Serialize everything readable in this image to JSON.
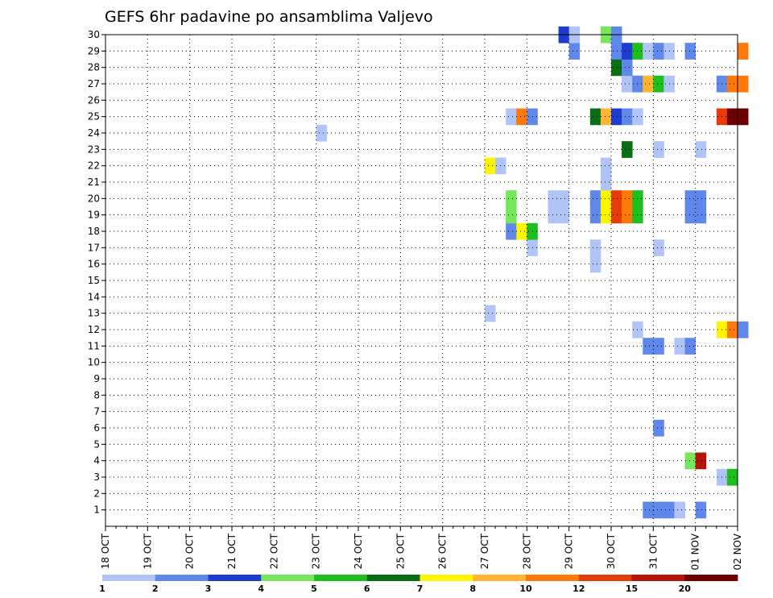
{
  "chart_data": {
    "type": "heatmap",
    "title": "GEFS 6hr padavine po ansamblima Valjevo",
    "x_tick_labels": [
      "18 OCT",
      "19 OCT",
      "20 OCT",
      "21 OCT",
      "22 OCT",
      "23 OCT",
      "24 OCT",
      "25 OCT",
      "26 OCT",
      "27 OCT",
      "28 OCT",
      "29 OCT",
      "30 OCT",
      "31 OCT",
      "01 NOV",
      "02 NOV"
    ],
    "y_tick_labels": [
      "1",
      "2",
      "3",
      "4",
      "5",
      "6",
      "7",
      "8",
      "9",
      "10",
      "11",
      "12",
      "13",
      "14",
      "15",
      "16",
      "17",
      "18",
      "19",
      "20",
      "21",
      "22",
      "23",
      "24",
      "25",
      "26",
      "27",
      "28",
      "29",
      "30"
    ],
    "x_range": [
      "18 OCT 00Z",
      "02 NOV 00Z"
    ],
    "x_step_hours": 6,
    "y_range": [
      0,
      30
    ],
    "grid": true,
    "colorbar": {
      "labels": [
        "1",
        "2",
        "3",
        "4",
        "5",
        "6",
        "7",
        "8",
        "10",
        "12",
        "15",
        "20"
      ],
      "colors": [
        "#b0c4f8",
        "#6088ea",
        "#1e3cd2",
        "#78e65a",
        "#1ebe1e",
        "#0a6e14",
        "#fff500",
        "#ffb432",
        "#ff780a",
        "#e63c0a",
        "#b4140a",
        "#6e0000"
      ]
    },
    "cells": [
      {
        "ens": 1,
        "day": "30 OCT",
        "h": 18,
        "v": 2
      },
      {
        "ens": 1,
        "day": "31 OCT",
        "h": 0,
        "v": 2
      },
      {
        "ens": 1,
        "day": "31 OCT",
        "h": 6,
        "v": 2
      },
      {
        "ens": 1,
        "day": "31 OCT",
        "h": 12,
        "v": 1
      },
      {
        "ens": 1,
        "day": "01 NOV",
        "h": 0,
        "v": 2
      },
      {
        "ens": 3,
        "day": "01 NOV",
        "h": 12,
        "v": 1
      },
      {
        "ens": 3,
        "day": "01 NOV",
        "h": 18,
        "v": 5
      },
      {
        "ens": 4,
        "day": "31 OCT",
        "h": 18,
        "v": 4
      },
      {
        "ens": 4,
        "day": "01 NOV",
        "h": 0,
        "v": 11
      },
      {
        "ens": 6,
        "day": "31 OCT",
        "h": 0,
        "v": 2
      },
      {
        "ens": 11,
        "day": "30 OCT",
        "h": 18,
        "v": 2
      },
      {
        "ens": 11,
        "day": "31 OCT",
        "h": 0,
        "v": 2
      },
      {
        "ens": 11,
        "day": "31 OCT",
        "h": 12,
        "v": 1
      },
      {
        "ens": 11,
        "day": "31 OCT",
        "h": 18,
        "v": 2
      },
      {
        "ens": 12,
        "day": "30 OCT",
        "h": 12,
        "v": 1
      },
      {
        "ens": 12,
        "day": "01 NOV",
        "h": 12,
        "v": 7
      },
      {
        "ens": 12,
        "day": "01 NOV",
        "h": 18,
        "v": 9
      },
      {
        "ens": 12,
        "day": "02 NOV",
        "h": 0,
        "v": 2
      },
      {
        "ens": 13,
        "day": "27 OCT",
        "h": 0,
        "v": 1
      },
      {
        "ens": 16,
        "day": "29 OCT",
        "h": 12,
        "v": 1
      },
      {
        "ens": 17,
        "day": "29 OCT",
        "h": 12,
        "v": 1
      },
      {
        "ens": 17,
        "day": "28 OCT",
        "h": 0,
        "v": 1
      },
      {
        "ens": 17,
        "day": "31 OCT",
        "h": 0,
        "v": 1
      },
      {
        "ens": 18,
        "day": "27 OCT",
        "h": 12,
        "v": 2
      },
      {
        "ens": 18,
        "day": "27 OCT",
        "h": 18,
        "v": 7
      },
      {
        "ens": 18,
        "day": "28 OCT",
        "h": 0,
        "v": 5
      },
      {
        "ens": 19,
        "day": "27 OCT",
        "h": 12,
        "v": 4
      },
      {
        "ens": 19,
        "day": "28 OCT",
        "h": 12,
        "v": 1
      },
      {
        "ens": 19,
        "day": "28 OCT",
        "h": 18,
        "v": 1
      },
      {
        "ens": 19,
        "day": "29 OCT",
        "h": 12,
        "v": 2
      },
      {
        "ens": 19,
        "day": "29 OCT",
        "h": 18,
        "v": 7
      },
      {
        "ens": 19,
        "day": "30 OCT",
        "h": 0,
        "v": 10
      },
      {
        "ens": 19,
        "day": "30 OCT",
        "h": 6,
        "v": 9
      },
      {
        "ens": 19,
        "day": "30 OCT",
        "h": 12,
        "v": 5
      },
      {
        "ens": 19,
        "day": "31 OCT",
        "h": 18,
        "v": 2
      },
      {
        "ens": 19,
        "day": "01 NOV",
        "h": 0,
        "v": 2
      },
      {
        "ens": 20,
        "day": "27 OCT",
        "h": 12,
        "v": 4
      },
      {
        "ens": 20,
        "day": "28 OCT",
        "h": 12,
        "v": 1
      },
      {
        "ens": 20,
        "day": "28 OCT",
        "h": 18,
        "v": 1
      },
      {
        "ens": 20,
        "day": "29 OCT",
        "h": 12,
        "v": 2
      },
      {
        "ens": 20,
        "day": "29 OCT",
        "h": 18,
        "v": 7
      },
      {
        "ens": 20,
        "day": "30 OCT",
        "h": 0,
        "v": 10
      },
      {
        "ens": 20,
        "day": "30 OCT",
        "h": 6,
        "v": 9
      },
      {
        "ens": 20,
        "day": "30 OCT",
        "h": 12,
        "v": 5
      },
      {
        "ens": 20,
        "day": "31 OCT",
        "h": 18,
        "v": 2
      },
      {
        "ens": 20,
        "day": "01 NOV",
        "h": 0,
        "v": 2
      },
      {
        "ens": 21,
        "day": "29 OCT",
        "h": 18,
        "v": 1
      },
      {
        "ens": 22,
        "day": "27 OCT",
        "h": 0,
        "v": 7
      },
      {
        "ens": 22,
        "day": "27 OCT",
        "h": 6,
        "v": 1
      },
      {
        "ens": 22,
        "day": "29 OCT",
        "h": 18,
        "v": 1
      },
      {
        "ens": 23,
        "day": "30 OCT",
        "h": 6,
        "v": 6
      },
      {
        "ens": 23,
        "day": "31 OCT",
        "h": 0,
        "v": 1
      },
      {
        "ens": 23,
        "day": "01 NOV",
        "h": 0,
        "v": 1
      },
      {
        "ens": 24,
        "day": "23 OCT",
        "h": 0,
        "v": 1
      },
      {
        "ens": 25,
        "day": "27 OCT",
        "h": 12,
        "v": 1
      },
      {
        "ens": 25,
        "day": "27 OCT",
        "h": 18,
        "v": 9
      },
      {
        "ens": 25,
        "day": "28 OCT",
        "h": 0,
        "v": 2
      },
      {
        "ens": 25,
        "day": "29 OCT",
        "h": 12,
        "v": 6
      },
      {
        "ens": 25,
        "day": "29 OCT",
        "h": 18,
        "v": 8
      },
      {
        "ens": 25,
        "day": "30 OCT",
        "h": 0,
        "v": 3
      },
      {
        "ens": 25,
        "day": "30 OCT",
        "h": 6,
        "v": 2
      },
      {
        "ens": 25,
        "day": "30 OCT",
        "h": 12,
        "v": 1
      },
      {
        "ens": 25,
        "day": "01 NOV",
        "h": 12,
        "v": 10
      },
      {
        "ens": 25,
        "day": "01 NOV",
        "h": 18,
        "v": 12
      },
      {
        "ens": 25,
        "day": "02 NOV",
        "h": 0,
        "v": 12
      },
      {
        "ens": 27,
        "day": "30 OCT",
        "h": 6,
        "v": 1
      },
      {
        "ens": 27,
        "day": "30 OCT",
        "h": 12,
        "v": 2
      },
      {
        "ens": 27,
        "day": "30 OCT",
        "h": 18,
        "v": 8
      },
      {
        "ens": 27,
        "day": "31 OCT",
        "h": 0,
        "v": 5
      },
      {
        "ens": 27,
        "day": "31 OCT",
        "h": 6,
        "v": 1
      },
      {
        "ens": 27,
        "day": "01 NOV",
        "h": 12,
        "v": 2
      },
      {
        "ens": 27,
        "day": "01 NOV",
        "h": 18,
        "v": 9
      },
      {
        "ens": 27,
        "day": "02 NOV",
        "h": 0,
        "v": 9
      },
      {
        "ens": 28,
        "day": "30 OCT",
        "h": 0,
        "v": 6
      },
      {
        "ens": 28,
        "day": "30 OCT",
        "h": 6,
        "v": 2
      },
      {
        "ens": 29,
        "day": "29 OCT",
        "h": 0,
        "v": 2
      },
      {
        "ens": 29,
        "day": "30 OCT",
        "h": 0,
        "v": 2
      },
      {
        "ens": 29,
        "day": "30 OCT",
        "h": 6,
        "v": 3
      },
      {
        "ens": 29,
        "day": "30 OCT",
        "h": 12,
        "v": 5
      },
      {
        "ens": 29,
        "day": "30 OCT",
        "h": 18,
        "v": 1
      },
      {
        "ens": 29,
        "day": "31 OCT",
        "h": 0,
        "v": 2
      },
      {
        "ens": 29,
        "day": "31 OCT",
        "h": 6,
        "v": 1
      },
      {
        "ens": 29,
        "day": "31 OCT",
        "h": 18,
        "v": 2
      },
      {
        "ens": 29,
        "day": "02 NOV",
        "h": 0,
        "v": 9
      },
      {
        "ens": 30,
        "day": "28 OCT",
        "h": 18,
        "v": 3
      },
      {
        "ens": 30,
        "day": "29 OCT",
        "h": 0,
        "v": 1
      },
      {
        "ens": 30,
        "day": "29 OCT",
        "h": 18,
        "v": 4
      },
      {
        "ens": 30,
        "day": "30 OCT",
        "h": 0,
        "v": 2
      }
    ]
  }
}
